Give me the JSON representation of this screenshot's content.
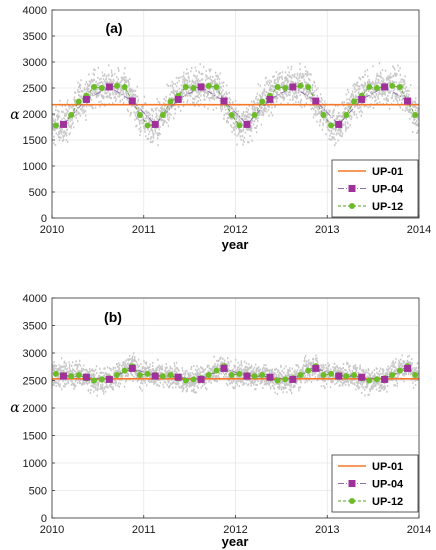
{
  "colors": {
    "up01": "#f4772a",
    "up04_marker": "#a0309a",
    "up04_line": "#8a6fa8",
    "up12_marker": "#6cbc2a",
    "up12_line": "#5a9e2a",
    "scatter": "#c8c8c8",
    "grid": "#e6e6e6"
  },
  "chart_data": [
    {
      "type": "line",
      "panel_label": "(a)",
      "xlabel": "year",
      "ylabel": "α",
      "xlim": [
        2010,
        2014
      ],
      "ylim": [
        0,
        4000
      ],
      "xticks": [
        2010,
        2011,
        2012,
        2013,
        2014
      ],
      "yticks": [
        0,
        500,
        1000,
        1500,
        2000,
        2500,
        3000,
        3500,
        4000
      ],
      "grid": true,
      "legend_position": "bottom-right",
      "background_points": "dense daily estimates (grey), ~1000 to ~3100",
      "series": [
        {
          "name": "UP-01",
          "x": [
            2010,
            2014
          ],
          "y": [
            2180,
            2180
          ]
        },
        {
          "name": "UP-04",
          "x": [
            2010.125,
            2010.375,
            2010.625,
            2010.875,
            2011.125,
            2011.375,
            2011.625,
            2011.875,
            2012.125,
            2012.375,
            2012.625,
            2012.875,
            2013.125,
            2013.375,
            2013.625,
            2013.875
          ],
          "y": [
            1800,
            2280,
            2520,
            2250,
            1800,
            2280,
            2520,
            2250,
            1800,
            2280,
            2520,
            2250,
            1800,
            2280,
            2520,
            2250
          ]
        },
        {
          "name": "UP-12",
          "x": [
            2010.042,
            2010.125,
            2010.208,
            2010.292,
            2010.375,
            2010.458,
            2010.542,
            2010.625,
            2010.708,
            2010.792,
            2010.875,
            2010.958,
            2011.042,
            2011.125,
            2011.208,
            2011.292,
            2011.375,
            2011.458,
            2011.542,
            2011.625,
            2011.708,
            2011.792,
            2011.875,
            2011.958,
            2012.042,
            2012.125,
            2012.208,
            2012.292,
            2012.375,
            2012.458,
            2012.542,
            2012.625,
            2012.708,
            2012.792,
            2012.875,
            2012.958,
            2013.042,
            2013.125,
            2013.208,
            2013.292,
            2013.375,
            2013.458,
            2013.542,
            2013.625,
            2013.708,
            2013.792,
            2013.875,
            2013.958
          ],
          "y": [
            1780,
            1790,
            1980,
            2240,
            2350,
            2520,
            2500,
            2520,
            2540,
            2520,
            2250,
            1980,
            1780,
            1790,
            1980,
            2240,
            2350,
            2520,
            2500,
            2520,
            2540,
            2520,
            2250,
            1980,
            1780,
            1790,
            1980,
            2240,
            2350,
            2520,
            2500,
            2520,
            2540,
            2520,
            2250,
            1980,
            1780,
            1790,
            1980,
            2240,
            2350,
            2520,
            2500,
            2520,
            2540,
            2520,
            2250,
            1980
          ]
        }
      ]
    },
    {
      "type": "line",
      "panel_label": "(b)",
      "xlabel": "year",
      "ylabel": "α",
      "xlim": [
        2010,
        2014
      ],
      "ylim": [
        0,
        4000
      ],
      "xticks": [
        2010,
        2011,
        2012,
        2013,
        2014
      ],
      "yticks": [
        0,
        500,
        1000,
        1500,
        2000,
        2500,
        3000,
        3500,
        4000
      ],
      "grid": true,
      "legend_position": "bottom-right",
      "background_points": "dense daily estimates (grey), ~1800 to ~3200",
      "series": [
        {
          "name": "UP-01",
          "x": [
            2010,
            2014
          ],
          "y": [
            2530,
            2530
          ]
        },
        {
          "name": "UP-04",
          "x": [
            2010.125,
            2010.375,
            2010.625,
            2010.875,
            2011.125,
            2011.375,
            2011.625,
            2011.875,
            2012.125,
            2012.375,
            2012.625,
            2012.875,
            2013.125,
            2013.375,
            2013.625,
            2013.875
          ],
          "y": [
            2580,
            2560,
            2520,
            2720,
            2580,
            2560,
            2520,
            2720,
            2580,
            2560,
            2520,
            2720,
            2580,
            2560,
            2520,
            2720
          ]
        },
        {
          "name": "UP-12",
          "x": [
            2010.042,
            2010.125,
            2010.208,
            2010.292,
            2010.375,
            2010.458,
            2010.542,
            2010.625,
            2010.708,
            2010.792,
            2010.875,
            2010.958,
            2011.042,
            2011.125,
            2011.208,
            2011.292,
            2011.375,
            2011.458,
            2011.542,
            2011.625,
            2011.708,
            2011.792,
            2011.875,
            2011.958,
            2012.042,
            2012.125,
            2012.208,
            2012.292,
            2012.375,
            2012.458,
            2012.542,
            2012.625,
            2012.708,
            2012.792,
            2012.875,
            2012.958,
            2013.042,
            2013.125,
            2013.208,
            2013.292,
            2013.375,
            2013.458,
            2013.542,
            2013.625,
            2013.708,
            2013.792,
            2013.875,
            2013.958
          ],
          "y": [
            2620,
            2600,
            2580,
            2600,
            2540,
            2500,
            2520,
            2540,
            2600,
            2680,
            2760,
            2600,
            2620,
            2600,
            2580,
            2600,
            2540,
            2500,
            2520,
            2540,
            2600,
            2680,
            2760,
            2600,
            2620,
            2600,
            2580,
            2600,
            2540,
            2500,
            2520,
            2540,
            2600,
            2680,
            2760,
            2600,
            2620,
            2600,
            2580,
            2600,
            2540,
            2500,
            2520,
            2540,
            2600,
            2680,
            2760,
            2600
          ]
        }
      ]
    }
  ]
}
